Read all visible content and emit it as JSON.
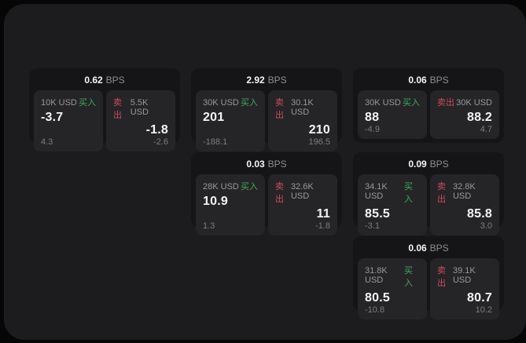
{
  "labels": {
    "bps_unit": "BPS",
    "buy": "买入",
    "sell": "卖出"
  },
  "colors": {
    "outer_bg": "#060606",
    "surface_bg": "#1c1c1e",
    "card_bg": "#151517",
    "panel_bg": "#252528",
    "buy_green": "#3cae57",
    "sell_red": "#cf4a5a",
    "value_white": "#f5f5f7",
    "label_gray": "#98989d"
  },
  "cards": [
    {
      "bps": "0.62",
      "buy": {
        "amount": "10K USD",
        "value": "-3.7",
        "sub": "4.3"
      },
      "sell": {
        "amount": "5.5K USD",
        "value": "-1.8",
        "sub": "-2.6"
      }
    },
    {
      "bps": "2.92",
      "buy": {
        "amount": "30K USD",
        "value": "201",
        "sub": "-188.1"
      },
      "sell": {
        "amount": "30.1K USD",
        "value": "210",
        "sub": "196.5"
      }
    },
    {
      "bps": "0.06",
      "buy": {
        "amount": "30K USD",
        "value": "88",
        "sub": "-4.9"
      },
      "sell": {
        "amount": "30K USD",
        "value": "88.2",
        "sub": "4.7"
      }
    },
    {
      "bps": "0.03",
      "buy": {
        "amount": "28K USD",
        "value": "10.9",
        "sub": "1.3"
      },
      "sell": {
        "amount": "32.6K USD",
        "value": "11",
        "sub": "-1.8"
      }
    },
    {
      "bps": "0.09",
      "buy": {
        "amount": "34.1K USD",
        "value": "85.5",
        "sub": "-3.1"
      },
      "sell": {
        "amount": "32.8K USD",
        "value": "85.8",
        "sub": "3.0"
      }
    },
    {
      "bps": "0.06",
      "buy": {
        "amount": "31.8K USD",
        "value": "80.5",
        "sub": "-10.8"
      },
      "sell": {
        "amount": "39.1K USD",
        "value": "80.7",
        "sub": "10.2"
      }
    }
  ]
}
